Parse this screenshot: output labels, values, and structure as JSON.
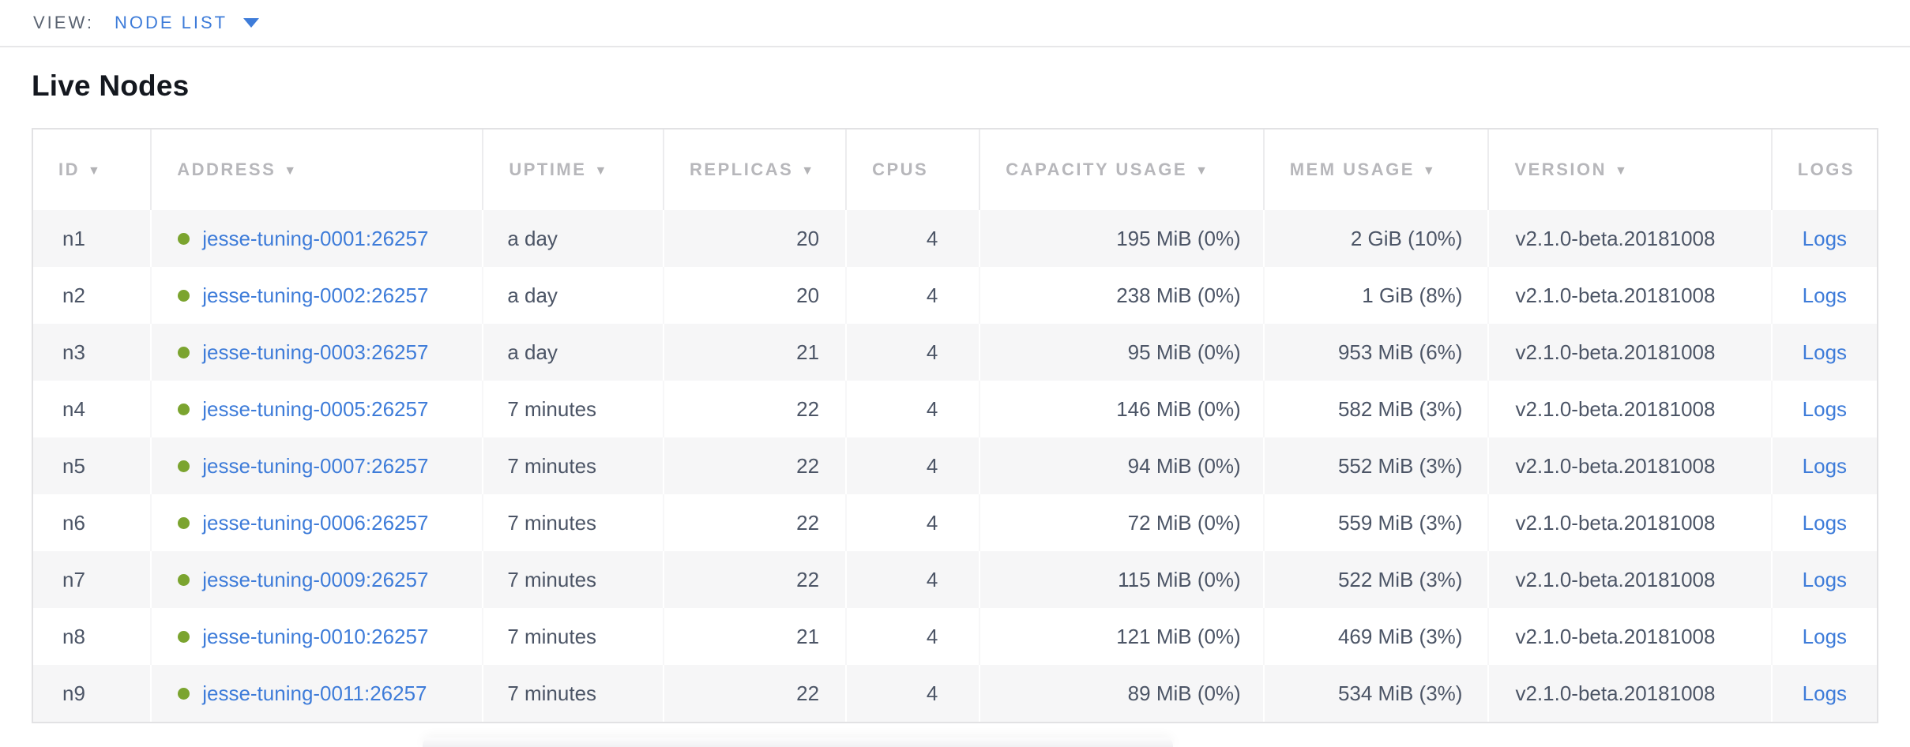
{
  "view_bar": {
    "label": "VIEW:",
    "selected": "NODE LIST"
  },
  "page": {
    "title": "Live Nodes"
  },
  "table": {
    "columns": [
      {
        "key": "id",
        "label": "ID",
        "sortable": true
      },
      {
        "key": "address",
        "label": "ADDRESS",
        "sortable": true
      },
      {
        "key": "uptime",
        "label": "UPTIME",
        "sortable": true
      },
      {
        "key": "replicas",
        "label": "REPLICAS",
        "sortable": true
      },
      {
        "key": "cpus",
        "label": "CPUS",
        "sortable": false
      },
      {
        "key": "capacity",
        "label": "CAPACITY USAGE",
        "sortable": true
      },
      {
        "key": "mem",
        "label": "MEM USAGE",
        "sortable": true
      },
      {
        "key": "version",
        "label": "VERSION",
        "sortable": true
      },
      {
        "key": "logs",
        "label": "LOGS",
        "sortable": false
      }
    ],
    "rows": [
      {
        "id": "n1",
        "address": "jesse-tuning-0001:26257",
        "uptime": "a day",
        "replicas": "20",
        "cpus": "4",
        "capacity": "195 MiB (0%)",
        "mem": "2 GiB (10%)",
        "version": "v2.1.0-beta.20181008",
        "logs": "Logs",
        "status": "live"
      },
      {
        "id": "n2",
        "address": "jesse-tuning-0002:26257",
        "uptime": "a day",
        "replicas": "20",
        "cpus": "4",
        "capacity": "238 MiB (0%)",
        "mem": "1 GiB (8%)",
        "version": "v2.1.0-beta.20181008",
        "logs": "Logs",
        "status": "live"
      },
      {
        "id": "n3",
        "address": "jesse-tuning-0003:26257",
        "uptime": "a day",
        "replicas": "21",
        "cpus": "4",
        "capacity": "95 MiB (0%)",
        "mem": "953 MiB (6%)",
        "version": "v2.1.0-beta.20181008",
        "logs": "Logs",
        "status": "live"
      },
      {
        "id": "n4",
        "address": "jesse-tuning-0005:26257",
        "uptime": "7 minutes",
        "replicas": "22",
        "cpus": "4",
        "capacity": "146 MiB (0%)",
        "mem": "582 MiB (3%)",
        "version": "v2.1.0-beta.20181008",
        "logs": "Logs",
        "status": "live"
      },
      {
        "id": "n5",
        "address": "jesse-tuning-0007:26257",
        "uptime": "7 minutes",
        "replicas": "22",
        "cpus": "4",
        "capacity": "94 MiB (0%)",
        "mem": "552 MiB (3%)",
        "version": "v2.1.0-beta.20181008",
        "logs": "Logs",
        "status": "live"
      },
      {
        "id": "n6",
        "address": "jesse-tuning-0006:26257",
        "uptime": "7 minutes",
        "replicas": "22",
        "cpus": "4",
        "capacity": "72 MiB (0%)",
        "mem": "559 MiB (3%)",
        "version": "v2.1.0-beta.20181008",
        "logs": "Logs",
        "status": "live"
      },
      {
        "id": "n7",
        "address": "jesse-tuning-0009:26257",
        "uptime": "7 minutes",
        "replicas": "22",
        "cpus": "4",
        "capacity": "115 MiB (0%)",
        "mem": "522 MiB (3%)",
        "version": "v2.1.0-beta.20181008",
        "logs": "Logs",
        "status": "live"
      },
      {
        "id": "n8",
        "address": "jesse-tuning-0010:26257",
        "uptime": "7 minutes",
        "replicas": "21",
        "cpus": "4",
        "capacity": "121 MiB (0%)",
        "mem": "469 MiB (3%)",
        "version": "v2.1.0-beta.20181008",
        "logs": "Logs",
        "status": "live"
      },
      {
        "id": "n9",
        "address": "jesse-tuning-0011:26257",
        "uptime": "7 minutes",
        "replicas": "22",
        "cpus": "4",
        "capacity": "89 MiB (0%)",
        "mem": "534 MiB (3%)",
        "version": "v2.1.0-beta.20181008",
        "logs": "Logs",
        "status": "live"
      }
    ]
  },
  "icons": {
    "sort_descending": "▼",
    "live_status_dot": "green-circle"
  },
  "colors": {
    "link_blue": "#3e7cd9",
    "live_dot_green": "#7ba42f",
    "header_text_gray": "#b7b7bb",
    "cell_text": "#4c5566",
    "row_alt_background": "#f6f6f7",
    "table_border": "#e2e2e4"
  }
}
